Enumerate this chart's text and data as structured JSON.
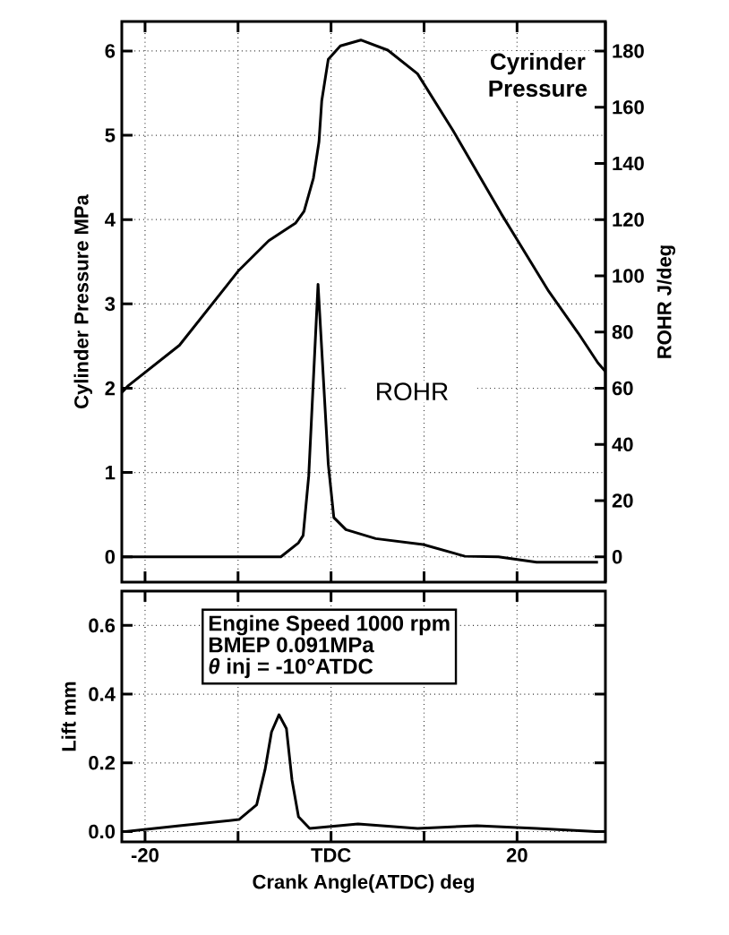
{
  "chart_data": [
    {
      "type": "line",
      "ylabel": "Cylinder Pressure  MPa",
      "y2label": "ROHR  J/deg",
      "xlim": [
        -22.5,
        29.5
      ],
      "ylim": [
        -0.3,
        6.35
      ],
      "y2lim": [
        -9,
        190.5
      ],
      "xticks": [
        -20,
        -10,
        0,
        10,
        20
      ],
      "yticks": [
        0,
        1,
        2,
        3,
        4,
        5,
        6
      ],
      "y2ticks": [
        0,
        20,
        40,
        60,
        80,
        100,
        120,
        140,
        160,
        180
      ],
      "tick_labels": "y",
      "grid": true,
      "line_style": "solid",
      "annotations": [
        "Cyrinder Pressure",
        "ROHR"
      ],
      "series": [
        {
          "color": "#000000",
          "x": [
            -22.5,
            -21.8,
            -16.3,
            -9.9,
            -6.7,
            -3.8,
            -2.9,
            -1.9,
            -1.3,
            -1.0,
            -0.3,
            1.0,
            3.2,
            6.1,
            9.3,
            13.1,
            18.3,
            23.4,
            26.6,
            28.7,
            29.5
          ],
          "values": [
            1.95,
            2.03,
            2.51,
            3.4,
            3.75,
            3.96,
            4.1,
            4.49,
            4.92,
            5.41,
            5.9,
            6.06,
            6.13,
            6.01,
            5.73,
            5.06,
            4.07,
            3.15,
            2.65,
            2.3,
            2.2
          ]
        },
        {
          "color": "#000000",
          "axis": "y2",
          "x": [
            -22.5,
            -15,
            -8,
            -5.4,
            -3.5,
            -3.0,
            -2.4,
            -1.4,
            -0.3,
            0.3,
            1.6,
            4.8,
            9.9,
            14.4,
            18,
            22.1,
            28.7
          ],
          "values": [
            0,
            0,
            0,
            0,
            5,
            7.6,
            28.8,
            97,
            33,
            14,
            9.7,
            6.5,
            4.4,
            0.2,
            0,
            -1.9,
            -1.9
          ]
        }
      ]
    },
    {
      "type": "line",
      "xlabel": "Crank Angle(ATDC) deg",
      "ylabel": "Lift  mm",
      "xlim": [
        -22.5,
        29.5
      ],
      "ylim": [
        -0.03,
        0.7
      ],
      "xticks": [
        {
          "value": -20,
          "label": "-20"
        },
        {
          "value": -10,
          "label": null
        },
        {
          "value": 0,
          "label": "TDC"
        },
        {
          "value": 10,
          "label": null
        },
        {
          "value": 20,
          "label": "20"
        }
      ],
      "yticks": [
        {
          "value": 0,
          "label": "0.0"
        },
        {
          "value": 0.2,
          "label": "0.2"
        },
        {
          "value": 0.4,
          "label": "0.4"
        },
        {
          "value": 0.6,
          "label": "0.6"
        }
      ],
      "grid": true,
      "line_style": "solid",
      "annotations": [
        "Engine Speed 1000 rpm",
        "BMEP 0.091MPa",
        "*θ* inj = -10°ATDC"
      ],
      "series": [
        {
          "color": "#000000",
          "x": [
            -22.1,
            -16.3,
            -9.9,
            -8.0,
            -7.1,
            -6.4,
            -5.6,
            -4.8,
            -4.2,
            -3.5,
            -2.3,
            2.9,
            9.3,
            15.7,
            22.1,
            28.5
          ],
          "values": [
            0.0,
            0.017,
            0.035,
            0.078,
            0.18,
            0.29,
            0.34,
            0.3,
            0.15,
            0.043,
            0.009,
            0.022,
            0.009,
            0.017,
            0.009,
            0.0
          ]
        }
      ]
    }
  ]
}
